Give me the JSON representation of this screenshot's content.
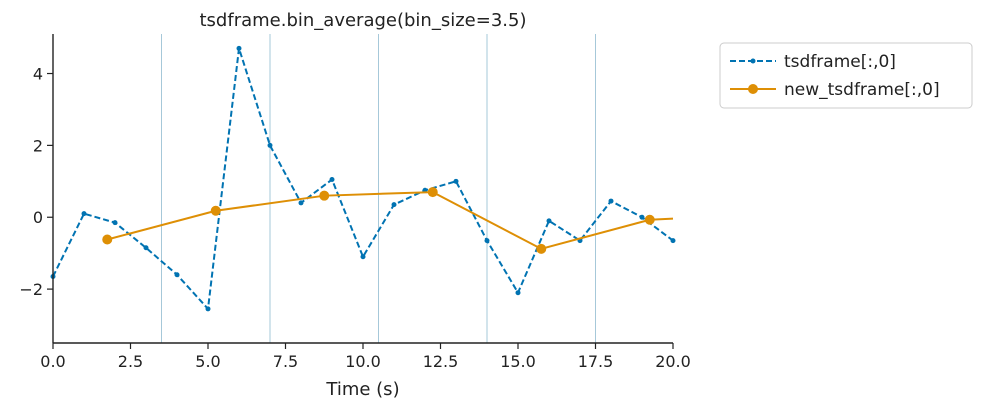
{
  "chart_data": {
    "type": "line",
    "title": "tsdframe.bin_average(bin_size=3.5)",
    "xlabel": "Time (s)",
    "ylabel": "",
    "xlim": [
      0,
      20
    ],
    "ylim": [
      -3.5,
      5.1
    ],
    "xticks": [
      0,
      2.5,
      5,
      7.5,
      10,
      12.5,
      15,
      17.5,
      20
    ],
    "xtick_labels": [
      "0.0",
      "2.5",
      "5.0",
      "7.5",
      "10.0",
      "12.5",
      "15.0",
      "17.5",
      "20.0"
    ],
    "yticks": [
      -2,
      0,
      2,
      4
    ],
    "ytick_labels": [
      "−2",
      "0",
      "2",
      "4"
    ],
    "bin_edges": [
      3.5,
      7,
      10.5,
      14,
      17.5
    ],
    "grid": false,
    "legend_position": "outside-top-right",
    "series": [
      {
        "name": "tsdframe[:,0]",
        "color": "#0173b2",
        "style": "dashed-dot-markers",
        "x": [
          0,
          1,
          2,
          3,
          4,
          5,
          6,
          7,
          8,
          9,
          10,
          11,
          12,
          13,
          14,
          15,
          16,
          17,
          18,
          19,
          20
        ],
        "y": [
          -1.65,
          0.1,
          -0.15,
          -0.85,
          -1.6,
          -2.55,
          4.7,
          2.0,
          0.4,
          1.05,
          -1.1,
          0.35,
          0.75,
          1.0,
          -0.65,
          -2.1,
          -0.1,
          -0.65,
          0.45,
          0.0,
          -0.65
        ]
      },
      {
        "name": "new_tsdframe[:,0]",
        "color": "#de8f05",
        "style": "solid-circle-markers",
        "x": [
          1.75,
          5.25,
          8.75,
          12.25,
          15.75,
          19.25
        ],
        "y": [
          -0.62,
          0.18,
          0.6,
          0.7,
          -0.88,
          -0.07
        ],
        "line_extends_to": [
          20,
          -0.04
        ]
      }
    ]
  }
}
